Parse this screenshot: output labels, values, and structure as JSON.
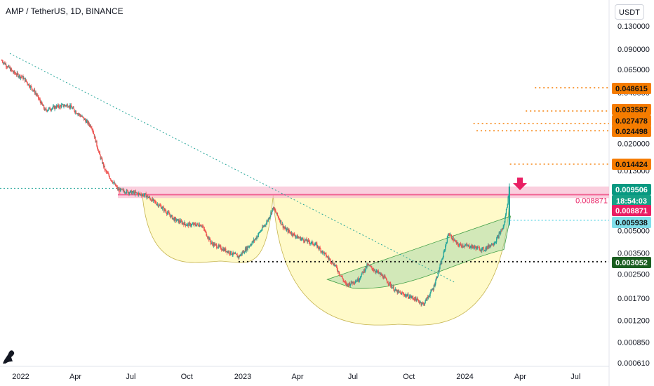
{
  "header": {
    "title": "AMP / TetherUS, 1D, BINANCE"
  },
  "currency_button": "USDT",
  "colors": {
    "up": "#26a69a",
    "down": "#ef5350",
    "resistance_pink": "#f06292",
    "target_orange": "#f57c00",
    "support_green": "#1b5e20",
    "cup_fill": "#fff59d",
    "handle_fill": "#a5d6a7",
    "price_tag": "#089981",
    "countdown_tag": "#16a085",
    "resistance_tag": "#e91e63",
    "cyan_tag": "#80deea"
  },
  "chart_data": {
    "type": "candlestick",
    "title": "AMP / TetherUS, 1D, BINANCE",
    "y_scale": "log",
    "y_ticks": [
      "0.130000",
      "0.090000",
      "0.065000",
      "0.045000",
      "0.035000",
      "0.020000",
      "0.013000",
      "0.009000",
      "0.005000",
      "0.003500",
      "0.002500",
      "0.001700",
      "0.001200",
      "0.000850",
      "0.000610"
    ],
    "x_ticks": [
      "2022",
      "Apr",
      "Jul",
      "Oct",
      "2023",
      "Apr",
      "Jul",
      "Oct",
      "2024",
      "Apr",
      "Jul"
    ],
    "x_range": [
      "2021-11-28",
      "2024-08-25"
    ],
    "series_points": [
      [
        "2021-12-01",
        0.075
      ],
      [
        "2021-12-20",
        0.062
      ],
      [
        "2022-01-05",
        0.057
      ],
      [
        "2022-01-25",
        0.045
      ],
      [
        "2022-02-10",
        0.034
      ],
      [
        "2022-03-01",
        0.036
      ],
      [
        "2022-03-20",
        0.037
      ],
      [
        "2022-04-10",
        0.031
      ],
      [
        "2022-04-28",
        0.026
      ],
      [
        "2022-05-10",
        0.017
      ],
      [
        "2022-05-20",
        0.013
      ],
      [
        "2022-06-10",
        0.0096
      ],
      [
        "2022-07-01",
        0.0092
      ],
      [
        "2022-07-25",
        0.0088
      ],
      [
        "2022-08-20",
        0.0073
      ],
      [
        "2022-09-10",
        0.006
      ],
      [
        "2022-10-01",
        0.0055
      ],
      [
        "2022-10-25",
        0.0055
      ],
      [
        "2022-11-10",
        0.0041
      ],
      [
        "2022-12-01",
        0.0037
      ],
      [
        "2022-12-25",
        0.0033
      ],
      [
        "2023-01-20",
        0.0043
      ],
      [
        "2023-02-10",
        0.0058
      ],
      [
        "2023-02-20",
        0.0072
      ],
      [
        "2023-03-10",
        0.0052
      ],
      [
        "2023-04-01",
        0.0045
      ],
      [
        "2023-05-01",
        0.004
      ],
      [
        "2023-06-01",
        0.0029
      ],
      [
        "2023-06-20",
        0.0021
      ],
      [
        "2023-07-10",
        0.0023
      ],
      [
        "2023-07-25",
        0.0029
      ],
      [
        "2023-08-20",
        0.0024
      ],
      [
        "2023-09-10",
        0.0019
      ],
      [
        "2023-10-10",
        0.0017
      ],
      [
        "2023-10-25",
        0.00155
      ],
      [
        "2023-11-10",
        0.002
      ],
      [
        "2023-11-25",
        0.0032
      ],
      [
        "2023-12-05",
        0.0048
      ],
      [
        "2023-12-20",
        0.004
      ],
      [
        "2024-01-10",
        0.0039
      ],
      [
        "2024-02-01",
        0.0037
      ],
      [
        "2024-02-20",
        0.0042
      ],
      [
        "2024-03-05",
        0.0054
      ],
      [
        "2024-03-14",
        0.0095
      ]
    ],
    "annotations": {
      "resistance_label": "0.008871",
      "price_tags": [
        {
          "value": "0.048615",
          "kind": "target"
        },
        {
          "value": "0.033587",
          "kind": "target"
        },
        {
          "value": "0.027478",
          "kind": "target"
        },
        {
          "value": "0.024498",
          "kind": "target"
        },
        {
          "value": "0.014424",
          "kind": "target"
        },
        {
          "value": "0.009506",
          "kind": "last"
        },
        {
          "value": "18:54:03",
          "kind": "countdown"
        },
        {
          "value": "0.008871",
          "kind": "resistance"
        },
        {
          "value": "0.005938",
          "kind": "cyan"
        },
        {
          "value": "0.003052",
          "kind": "support"
        }
      ]
    }
  }
}
